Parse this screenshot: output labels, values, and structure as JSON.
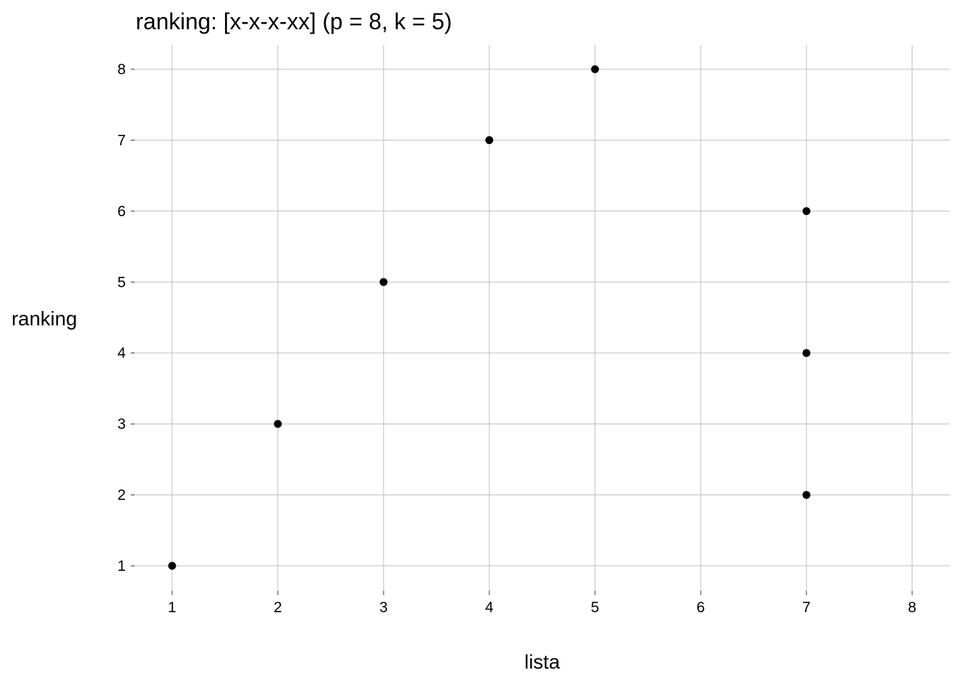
{
  "chart_data": {
    "type": "scatter",
    "title": "ranking: [x-x-x-xx] (p = 8, k = 5)",
    "xlabel": "lista",
    "ylabel": "ranking",
    "xlim": [
      1,
      8
    ],
    "ylim": [
      1,
      8
    ],
    "x_ticks": [
      1,
      2,
      3,
      4,
      5,
      6,
      7,
      8
    ],
    "y_ticks": [
      1,
      2,
      3,
      4,
      5,
      6,
      7,
      8
    ],
    "grid": true,
    "legend": "none",
    "point_color": "#000000",
    "grid_color": "#bdbdbd",
    "series": [
      {
        "points": [
          {
            "x": 1,
            "y": 1
          },
          {
            "x": 2,
            "y": 3
          },
          {
            "x": 3,
            "y": 5
          },
          {
            "x": 4,
            "y": 7
          },
          {
            "x": 5,
            "y": 8
          },
          {
            "x": 7,
            "y": 2
          },
          {
            "x": 7,
            "y": 4
          },
          {
            "x": 7,
            "y": 6
          }
        ]
      }
    ]
  }
}
